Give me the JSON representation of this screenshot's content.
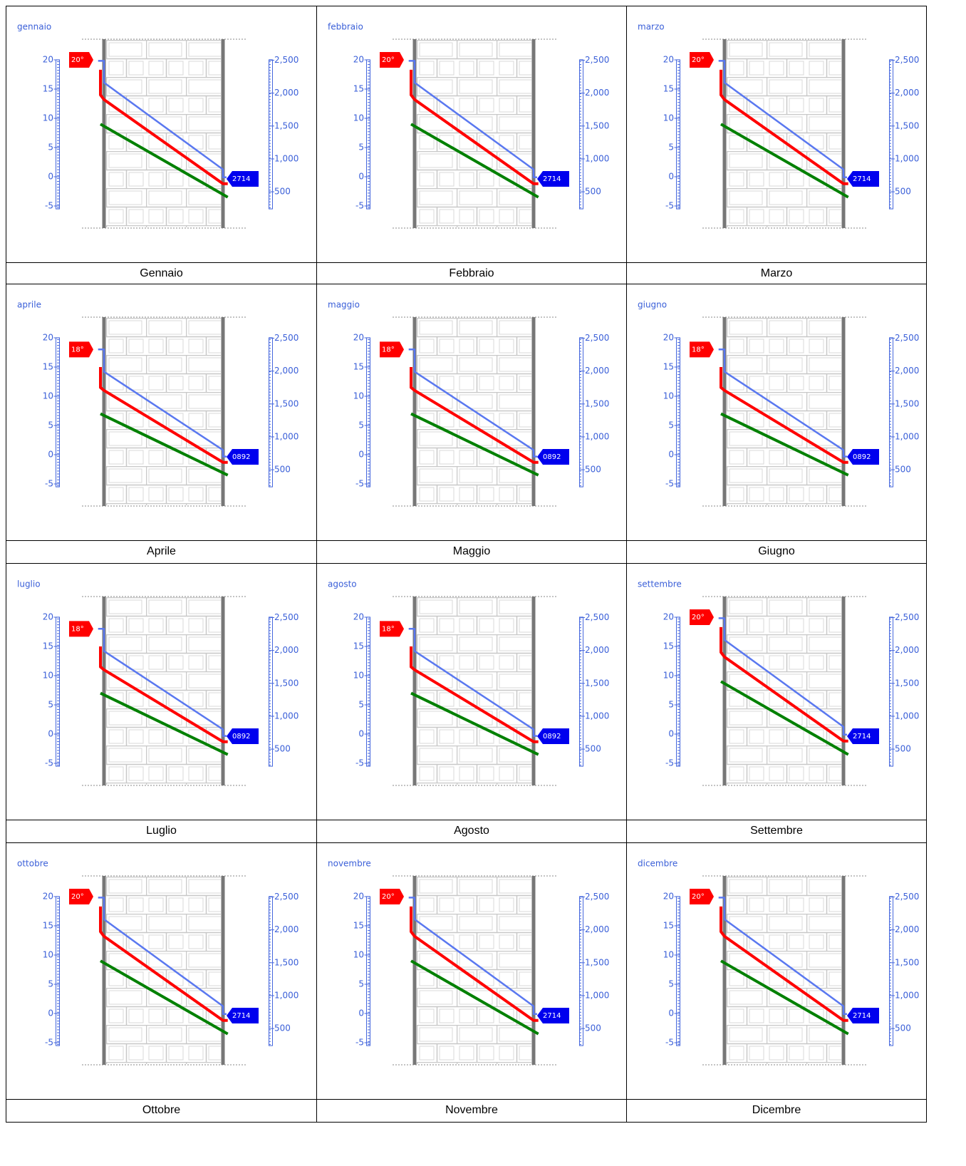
{
  "chart_data": [
    {
      "type": "line",
      "title": "gennaio",
      "xlim": [
        -0.1,
        1.1
      ],
      "ylim": [
        -5.5,
        20.5
      ],
      "yticks": [
        -5,
        0,
        5,
        10,
        15,
        20
      ],
      "y2lim": [
        240,
        2550
      ],
      "y2ticks": [
        500,
        {
          "value": 1000,
          "label": "1,000"
        },
        {
          "value": 1500,
          "label": "1,500"
        },
        {
          "value": 2000,
          "label": "2,000"
        },
        {
          "value": 2500,
          "label": "2,500"
        }
      ],
      "temp_tag": {
        "value": 20,
        "label": "20°"
      },
      "vapor_tag": "2714",
      "series": [
        {
          "color": "#5a78f0",
          "axis": "y2",
          "x": [
            -0.05,
            0,
            0,
            1,
            1,
            1.03
          ],
          "values": [
            2490,
            2490,
            2160,
            840,
            720,
            720
          ]
        },
        {
          "color": "#ff0000",
          "x": [
            -0.03,
            -0.03,
            0,
            1,
            1.04
          ],
          "values": [
            18.3,
            14,
            13.2,
            -1.2,
            -1.2
          ]
        },
        {
          "color": "#008000",
          "x": [
            -0.03,
            1.04
          ],
          "values": [
            9,
            -3.5
          ]
        }
      ]
    },
    {
      "type": "line",
      "title": "febbraio",
      "xlim": [
        -0.1,
        1.1
      ],
      "ylim": [
        -5.5,
        20.5
      ],
      "yticks": [
        -5,
        0,
        5,
        10,
        15,
        20
      ],
      "y2lim": [
        240,
        2550
      ],
      "y2ticks": [
        500,
        {
          "value": 1000,
          "label": "1,000"
        },
        {
          "value": 1500,
          "label": "1,500"
        },
        {
          "value": 2000,
          "label": "2,000"
        },
        {
          "value": 2500,
          "label": "2,500"
        }
      ],
      "temp_tag": {
        "value": 20,
        "label": "20°"
      },
      "vapor_tag": "2714",
      "series": [
        {
          "color": "#5a78f0",
          "axis": "y2",
          "x": [
            -0.05,
            0,
            0,
            1,
            1,
            1.03
          ],
          "values": [
            2490,
            2490,
            2160,
            840,
            720,
            720
          ]
        },
        {
          "color": "#ff0000",
          "x": [
            -0.03,
            -0.03,
            0,
            1,
            1.04
          ],
          "values": [
            18.3,
            14,
            13.2,
            -1.2,
            -1.2
          ]
        },
        {
          "color": "#008000",
          "x": [
            -0.03,
            1.04
          ],
          "values": [
            9,
            -3.5
          ]
        }
      ]
    },
    {
      "type": "line",
      "title": "marzo",
      "xlim": [
        -0.1,
        1.1
      ],
      "ylim": [
        -5.5,
        20.5
      ],
      "yticks": [
        -5,
        0,
        5,
        10,
        15,
        20
      ],
      "y2lim": [
        240,
        2550
      ],
      "y2ticks": [
        500,
        {
          "value": 1000,
          "label": "1,000"
        },
        {
          "value": 1500,
          "label": "1,500"
        },
        {
          "value": 2000,
          "label": "2,000"
        },
        {
          "value": 2500,
          "label": "2,500"
        }
      ],
      "temp_tag": {
        "value": 20,
        "label": "20°"
      },
      "vapor_tag": "2714",
      "series": [
        {
          "color": "#5a78f0",
          "axis": "y2",
          "x": [
            -0.05,
            0,
            0,
            1,
            1,
            1.03
          ],
          "values": [
            2490,
            2490,
            2160,
            840,
            720,
            720
          ]
        },
        {
          "color": "#ff0000",
          "x": [
            -0.03,
            -0.03,
            0,
            1,
            1.04
          ],
          "values": [
            18.3,
            14,
            13.2,
            -1.2,
            -1.2
          ]
        },
        {
          "color": "#008000",
          "x": [
            -0.03,
            1.04
          ],
          "values": [
            9,
            -3.5
          ]
        }
      ]
    },
    {
      "type": "line",
      "title": "aprile",
      "xlim": [
        -0.1,
        1.1
      ],
      "ylim": [
        -5.5,
        20.5
      ],
      "yticks": [
        -5,
        0,
        5,
        10,
        15,
        20
      ],
      "y2lim": [
        240,
        2550
      ],
      "y2ticks": [
        500,
        {
          "value": 1000,
          "label": "1,000"
        },
        {
          "value": 1500,
          "label": "1,500"
        },
        {
          "value": 2000,
          "label": "2,000"
        },
        {
          "value": 2500,
          "label": "2,500"
        }
      ],
      "temp_tag": {
        "value": 18,
        "label": "18°"
      },
      "vapor_tag": "0892",
      "series": [
        {
          "color": "#5a78f0",
          "axis": "y2",
          "x": [
            -0.05,
            0,
            0,
            1,
            1,
            1.03
          ],
          "values": [
            2330,
            2330,
            1990,
            800,
            700,
            700
          ]
        },
        {
          "color": "#ff0000",
          "x": [
            -0.03,
            -0.03,
            0,
            1,
            1.04
          ],
          "values": [
            15,
            11.5,
            11,
            -1.3,
            -1.3
          ]
        },
        {
          "color": "#008000",
          "x": [
            -0.03,
            1.04
          ],
          "values": [
            7,
            -3.5
          ]
        }
      ]
    },
    {
      "type": "line",
      "title": "maggio",
      "xlim": [
        -0.1,
        1.1
      ],
      "ylim": [
        -5.5,
        20.5
      ],
      "yticks": [
        -5,
        0,
        5,
        10,
        15,
        20
      ],
      "y2lim": [
        240,
        2550
      ],
      "y2ticks": [
        500,
        {
          "value": 1000,
          "label": "1,000"
        },
        {
          "value": 1500,
          "label": "1,500"
        },
        {
          "value": 2000,
          "label": "2,000"
        },
        {
          "value": 2500,
          "label": "2,500"
        }
      ],
      "temp_tag": {
        "value": 18,
        "label": "18°"
      },
      "vapor_tag": "0892",
      "series": [
        {
          "color": "#5a78f0",
          "axis": "y2",
          "x": [
            -0.05,
            0,
            0,
            1,
            1,
            1.03
          ],
          "values": [
            2330,
            2330,
            1990,
            800,
            700,
            700
          ]
        },
        {
          "color": "#ff0000",
          "x": [
            -0.03,
            -0.03,
            0,
            1,
            1.04
          ],
          "values": [
            15,
            11.5,
            11,
            -1.3,
            -1.3
          ]
        },
        {
          "color": "#008000",
          "x": [
            -0.03,
            1.04
          ],
          "values": [
            7,
            -3.5
          ]
        }
      ]
    },
    {
      "type": "line",
      "title": "giugno",
      "xlim": [
        -0.1,
        1.1
      ],
      "ylim": [
        -5.5,
        20.5
      ],
      "yticks": [
        -5,
        0,
        5,
        10,
        15,
        20
      ],
      "y2lim": [
        240,
        2550
      ],
      "y2ticks": [
        500,
        {
          "value": 1000,
          "label": "1,000"
        },
        {
          "value": 1500,
          "label": "1,500"
        },
        {
          "value": 2000,
          "label": "2,000"
        },
        {
          "value": 2500,
          "label": "2,500"
        }
      ],
      "temp_tag": {
        "value": 18,
        "label": "18°"
      },
      "vapor_tag": "0892",
      "series": [
        {
          "color": "#5a78f0",
          "axis": "y2",
          "x": [
            -0.05,
            0,
            0,
            1,
            1,
            1.03
          ],
          "values": [
            2330,
            2330,
            1990,
            800,
            700,
            700
          ]
        },
        {
          "color": "#ff0000",
          "x": [
            -0.03,
            -0.03,
            0,
            1,
            1.04
          ],
          "values": [
            15,
            11.5,
            11,
            -1.3,
            -1.3
          ]
        },
        {
          "color": "#008000",
          "x": [
            -0.03,
            1.04
          ],
          "values": [
            7,
            -3.5
          ]
        }
      ]
    },
    {
      "type": "line",
      "title": "luglio",
      "xlim": [
        -0.1,
        1.1
      ],
      "ylim": [
        -5.5,
        20.5
      ],
      "yticks": [
        -5,
        0,
        5,
        10,
        15,
        20
      ],
      "y2lim": [
        240,
        2550
      ],
      "y2ticks": [
        500,
        {
          "value": 1000,
          "label": "1,000"
        },
        {
          "value": 1500,
          "label": "1,500"
        },
        {
          "value": 2000,
          "label": "2,000"
        },
        {
          "value": 2500,
          "label": "2,500"
        }
      ],
      "temp_tag": {
        "value": 18,
        "label": "18°"
      },
      "vapor_tag": "0892",
      "series": [
        {
          "color": "#5a78f0",
          "axis": "y2",
          "x": [
            -0.05,
            0,
            0,
            1,
            1,
            1.03
          ],
          "values": [
            2330,
            2330,
            1990,
            800,
            700,
            700
          ]
        },
        {
          "color": "#ff0000",
          "x": [
            -0.03,
            -0.03,
            0,
            1,
            1.04
          ],
          "values": [
            15,
            11.5,
            11,
            -1.3,
            -1.3
          ]
        },
        {
          "color": "#008000",
          "x": [
            -0.03,
            1.04
          ],
          "values": [
            7,
            -3.5
          ]
        }
      ]
    },
    {
      "type": "line",
      "title": "agosto",
      "xlim": [
        -0.1,
        1.1
      ],
      "ylim": [
        -5.5,
        20.5
      ],
      "yticks": [
        -5,
        0,
        5,
        10,
        15,
        20
      ],
      "y2lim": [
        240,
        2550
      ],
      "y2ticks": [
        500,
        {
          "value": 1000,
          "label": "1,000"
        },
        {
          "value": 1500,
          "label": "1,500"
        },
        {
          "value": 2000,
          "label": "2,000"
        },
        {
          "value": 2500,
          "label": "2,500"
        }
      ],
      "temp_tag": {
        "value": 18,
        "label": "18°"
      },
      "vapor_tag": "0892",
      "series": [
        {
          "color": "#5a78f0",
          "axis": "y2",
          "x": [
            -0.05,
            0,
            0,
            1,
            1,
            1.03
          ],
          "values": [
            2330,
            2330,
            1990,
            800,
            700,
            700
          ]
        },
        {
          "color": "#ff0000",
          "x": [
            -0.03,
            -0.03,
            0,
            1,
            1.04
          ],
          "values": [
            15,
            11.5,
            11,
            -1.3,
            -1.3
          ]
        },
        {
          "color": "#008000",
          "x": [
            -0.03,
            1.04
          ],
          "values": [
            7,
            -3.5
          ]
        }
      ]
    },
    {
      "type": "line",
      "title": "settembre",
      "xlim": [
        -0.1,
        1.1
      ],
      "ylim": [
        -5.5,
        20.5
      ],
      "yticks": [
        -5,
        0,
        5,
        10,
        15,
        20
      ],
      "y2lim": [
        240,
        2550
      ],
      "y2ticks": [
        500,
        {
          "value": 1000,
          "label": "1,000"
        },
        {
          "value": 1500,
          "label": "1,500"
        },
        {
          "value": 2000,
          "label": "2,000"
        },
        {
          "value": 2500,
          "label": "2,500"
        }
      ],
      "temp_tag": {
        "value": 20,
        "label": "20°"
      },
      "vapor_tag": "2714",
      "series": [
        {
          "color": "#5a78f0",
          "axis": "y2",
          "x": [
            -0.05,
            0,
            0,
            1,
            1,
            1.03
          ],
          "values": [
            2490,
            2490,
            2160,
            840,
            720,
            720
          ]
        },
        {
          "color": "#ff0000",
          "x": [
            -0.03,
            -0.03,
            0,
            1,
            1.04
          ],
          "values": [
            18.3,
            14,
            13.2,
            -1.2,
            -1.2
          ]
        },
        {
          "color": "#008000",
          "x": [
            -0.03,
            1.04
          ],
          "values": [
            9,
            -3.5
          ]
        }
      ]
    },
    {
      "type": "line",
      "title": "ottobre",
      "xlim": [
        -0.1,
        1.1
      ],
      "ylim": [
        -5.5,
        20.5
      ],
      "yticks": [
        -5,
        0,
        5,
        10,
        15,
        20
      ],
      "y2lim": [
        240,
        2550
      ],
      "y2ticks": [
        500,
        {
          "value": 1000,
          "label": "1,000"
        },
        {
          "value": 1500,
          "label": "1,500"
        },
        {
          "value": 2000,
          "label": "2,000"
        },
        {
          "value": 2500,
          "label": "2,500"
        }
      ],
      "temp_tag": {
        "value": 20,
        "label": "20°"
      },
      "vapor_tag": "2714",
      "series": [
        {
          "color": "#5a78f0",
          "axis": "y2",
          "x": [
            -0.05,
            0,
            0,
            1,
            1,
            1.03
          ],
          "values": [
            2490,
            2490,
            2160,
            840,
            720,
            720
          ]
        },
        {
          "color": "#ff0000",
          "x": [
            -0.03,
            -0.03,
            0,
            1,
            1.04
          ],
          "values": [
            18.3,
            14,
            13.2,
            -1.2,
            -1.2
          ]
        },
        {
          "color": "#008000",
          "x": [
            -0.03,
            1.04
          ],
          "values": [
            9,
            -3.5
          ]
        }
      ]
    },
    {
      "type": "line",
      "title": "novembre",
      "xlim": [
        -0.1,
        1.1
      ],
      "ylim": [
        -5.5,
        20.5
      ],
      "yticks": [
        -5,
        0,
        5,
        10,
        15,
        20
      ],
      "y2lim": [
        240,
        2550
      ],
      "y2ticks": [
        500,
        {
          "value": 1000,
          "label": "1,000"
        },
        {
          "value": 1500,
          "label": "1,500"
        },
        {
          "value": 2000,
          "label": "2,000"
        },
        {
          "value": 2500,
          "label": "2,500"
        }
      ],
      "temp_tag": {
        "value": 20,
        "label": "20°"
      },
      "vapor_tag": "2714",
      "series": [
        {
          "color": "#5a78f0",
          "axis": "y2",
          "x": [
            -0.05,
            0,
            0,
            1,
            1,
            1.03
          ],
          "values": [
            2490,
            2490,
            2160,
            840,
            720,
            720
          ]
        },
        {
          "color": "#ff0000",
          "x": [
            -0.03,
            -0.03,
            0,
            1,
            1.04
          ],
          "values": [
            18.3,
            14,
            13.2,
            -1.2,
            -1.2
          ]
        },
        {
          "color": "#008000",
          "x": [
            -0.03,
            1.04
          ],
          "values": [
            9,
            -3.5
          ]
        }
      ]
    },
    {
      "type": "line",
      "title": "dicembre",
      "xlim": [
        -0.1,
        1.1
      ],
      "ylim": [
        -5.5,
        20.5
      ],
      "yticks": [
        -5,
        0,
        5,
        10,
        15,
        20
      ],
      "y2lim": [
        240,
        2550
      ],
      "y2ticks": [
        500,
        {
          "value": 1000,
          "label": "1,000"
        },
        {
          "value": 1500,
          "label": "1,500"
        },
        {
          "value": 2000,
          "label": "2,000"
        },
        {
          "value": 2500,
          "label": "2,500"
        }
      ],
      "temp_tag": {
        "value": 20,
        "label": "20°"
      },
      "vapor_tag": "2714",
      "series": [
        {
          "color": "#5a78f0",
          "axis": "y2",
          "x": [
            -0.05,
            0,
            0,
            1,
            1,
            1.03
          ],
          "values": [
            2490,
            2490,
            2160,
            840,
            720,
            720
          ]
        },
        {
          "color": "#ff0000",
          "x": [
            -0.03,
            -0.03,
            0,
            1,
            1.04
          ],
          "values": [
            18.3,
            14,
            13.2,
            -1.2,
            -1.2
          ]
        },
        {
          "color": "#008000",
          "x": [
            -0.03,
            1.04
          ],
          "values": [
            9,
            -3.5
          ]
        }
      ]
    }
  ],
  "captions": [
    "Gennaio",
    "Febbraio",
    "Marzo",
    "Aprile",
    "Maggio",
    "Giugno",
    "Luglio",
    "Agosto",
    "Settembre",
    "Ottobre",
    "Novembre",
    "Dicembre"
  ]
}
